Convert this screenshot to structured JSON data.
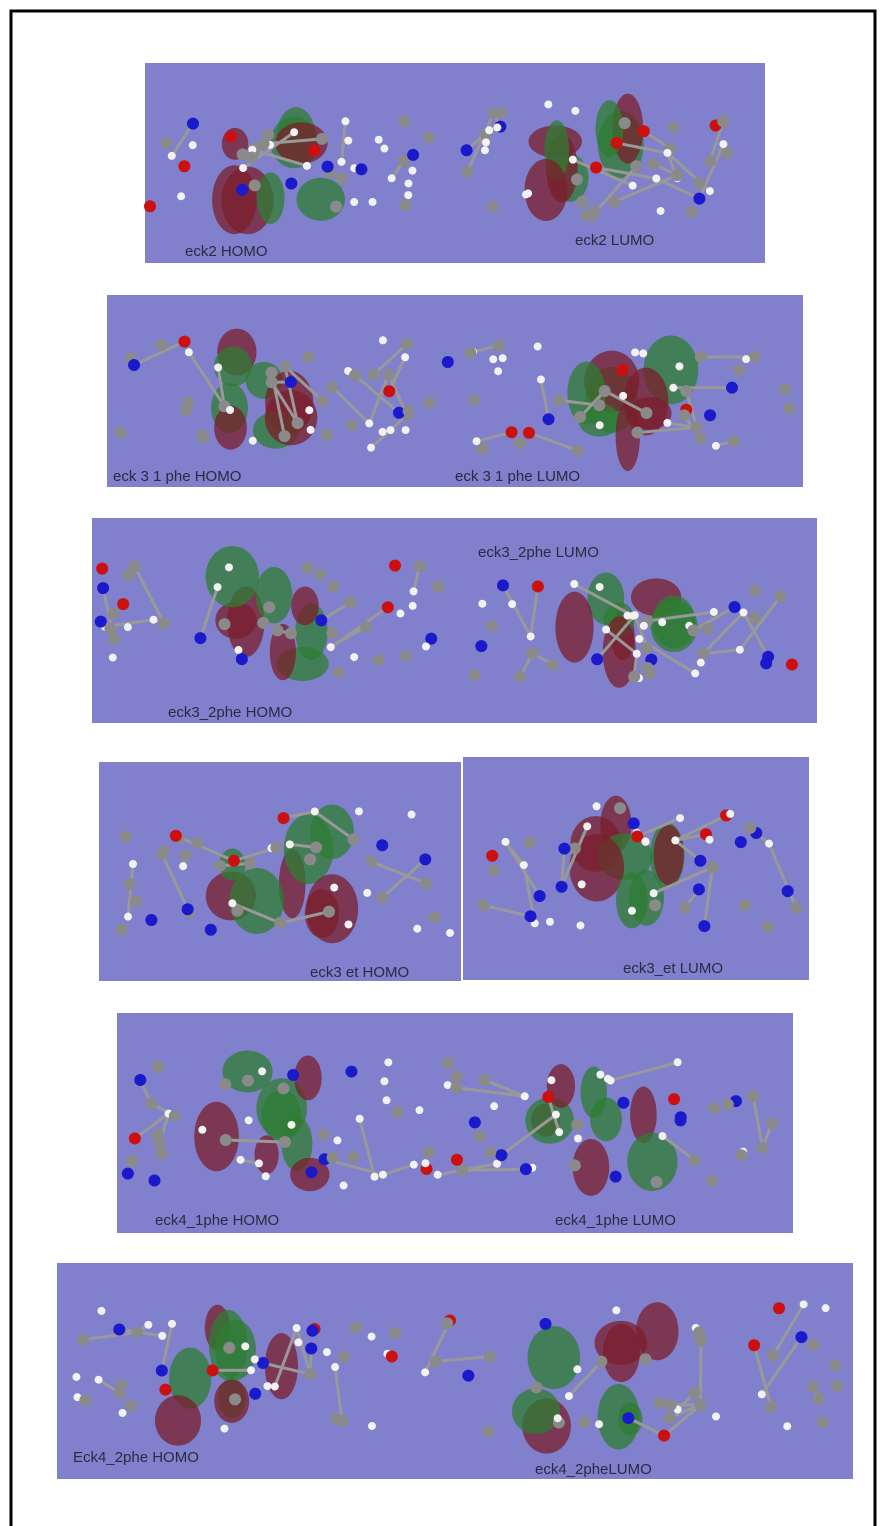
{
  "panels": [
    {
      "left_label": "eck2 HOMO",
      "right_label": "eck2 LUMO"
    },
    {
      "left_label": "eck 3 1 phe HOMO",
      "right_label": "eck 3 1 phe LUMO"
    },
    {
      "left_label": "eck3_2phe HOMO",
      "right_label": "eck3_2phe LUMO"
    },
    {
      "left_label": "eck3  et HOMO",
      "right_label": "eck3_et LUMO"
    },
    {
      "left_label": "eck4_1phe HOMO",
      "right_label": "eck4_1phe LUMO"
    },
    {
      "left_label": "Eck4_2phe HOMO",
      "right_label": "eck4_2pheLUMO"
    }
  ]
}
